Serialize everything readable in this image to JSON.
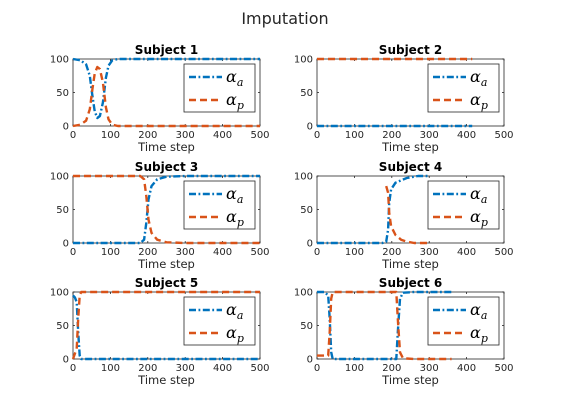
{
  "figure": {
    "title": "Imputation"
  },
  "chart_data": [
    {
      "type": "line",
      "title": "Subject 1",
      "xlabel": "Time step",
      "ylabel": "",
      "xlim": [
        0,
        500
      ],
      "ylim": [
        0,
        100
      ],
      "xticks": [
        0,
        100,
        200,
        300,
        400,
        500
      ],
      "yticks": [
        0,
        50,
        100
      ],
      "legend": {
        "placement": "right",
        "entries": [
          "α_a",
          "α_p"
        ]
      },
      "series": [
        {
          "name": "α_a",
          "color": "#0072BD",
          "style": "dash-dot",
          "points": [
            [
              0,
              100
            ],
            [
              20,
              98
            ],
            [
              35,
              92
            ],
            [
              45,
              75
            ],
            [
              52,
              45
            ],
            [
              58,
              22
            ],
            [
              65,
              12
            ],
            [
              72,
              15
            ],
            [
              80,
              35
            ],
            [
              88,
              72
            ],
            [
              95,
              90
            ],
            [
              105,
              98
            ],
            [
              120,
              100
            ],
            [
              500,
              100
            ]
          ]
        },
        {
          "name": "α_p",
          "color": "#D95319",
          "style": "dashed",
          "points": [
            [
              0,
              0
            ],
            [
              20,
              2
            ],
            [
              35,
              8
            ],
            [
              45,
              25
            ],
            [
              52,
              55
            ],
            [
              58,
              78
            ],
            [
              65,
              88
            ],
            [
              72,
              85
            ],
            [
              80,
              65
            ],
            [
              88,
              28
            ],
            [
              95,
              10
            ],
            [
              105,
              2
            ],
            [
              120,
              0
            ],
            [
              500,
              0
            ]
          ]
        }
      ]
    },
    {
      "type": "line",
      "title": "Subject 2",
      "xlabel": "Time step",
      "ylabel": "",
      "xlim": [
        0,
        500
      ],
      "ylim": [
        0,
        100
      ],
      "xticks": [
        0,
        100,
        200,
        300,
        400,
        500
      ],
      "yticks": [
        0,
        50,
        100
      ],
      "legend": {
        "placement": "right",
        "entries": [
          "α_a",
          "α_p"
        ]
      },
      "series": [
        {
          "name": "α_a",
          "color": "#0072BD",
          "style": "dash-dot",
          "points": [
            [
              0,
              0
            ],
            [
              415,
              0
            ]
          ]
        },
        {
          "name": "α_p",
          "color": "#D95319",
          "style": "dashed",
          "points": [
            [
              0,
              100
            ],
            [
              415,
              100
            ]
          ]
        }
      ]
    },
    {
      "type": "line",
      "title": "Subject 3",
      "xlabel": "Time step",
      "ylabel": "",
      "xlim": [
        0,
        500
      ],
      "ylim": [
        0,
        100
      ],
      "xticks": [
        0,
        100,
        200,
        300,
        400,
        500
      ],
      "yticks": [
        0,
        50,
        100
      ],
      "legend": {
        "placement": "right",
        "entries": [
          "α_a",
          "α_p"
        ]
      },
      "series": [
        {
          "name": "α_a",
          "color": "#0072BD",
          "style": "dash-dot",
          "points": [
            [
              0,
              0
            ],
            [
              180,
              0
            ],
            [
              190,
              5
            ],
            [
              196,
              30
            ],
            [
              202,
              65
            ],
            [
              210,
              85
            ],
            [
              225,
              95
            ],
            [
              250,
              99
            ],
            [
              300,
              100
            ],
            [
              500,
              100
            ]
          ]
        },
        {
          "name": "α_p",
          "color": "#D95319",
          "style": "dashed",
          "points": [
            [
              0,
              100
            ],
            [
              180,
              100
            ],
            [
              190,
              95
            ],
            [
              196,
              70
            ],
            [
              202,
              35
            ],
            [
              210,
              15
            ],
            [
              225,
              5
            ],
            [
              250,
              1
            ],
            [
              300,
              0
            ],
            [
              500,
              0
            ]
          ]
        }
      ]
    },
    {
      "type": "line",
      "title": "Subject 4",
      "xlabel": "Time step",
      "ylabel": "",
      "xlim": [
        0,
        500
      ],
      "ylim": [
        0,
        100
      ],
      "xticks": [
        0,
        100,
        200,
        300,
        400,
        500
      ],
      "yticks": [
        0,
        50,
        100
      ],
      "legend": {
        "placement": "right",
        "entries": [
          "α_a",
          "α_p"
        ]
      },
      "series": [
        {
          "name": "α_a",
          "color": "#0072BD",
          "style": "dash-dot",
          "points": [
            [
              0,
              0
            ],
            [
              175,
              0
            ],
            [
              185,
              2
            ],
            [
              190,
              20
            ],
            [
              193,
              60
            ],
            [
              198,
              80
            ],
            [
              210,
              90
            ],
            [
              240,
              97
            ],
            [
              270,
              100
            ],
            [
              300,
              100
            ]
          ]
        },
        {
          "name": "α_p",
          "color": "#D95319",
          "style": "dashed",
          "points": [
            [
              185,
              85
            ],
            [
              190,
              75
            ],
            [
              193,
              45
            ],
            [
              198,
              25
            ],
            [
              210,
              12
            ],
            [
              225,
              5
            ],
            [
              240,
              2
            ],
            [
              260,
              0
            ],
            [
              300,
              0
            ]
          ]
        }
      ]
    },
    {
      "type": "line",
      "title": "Subject 5",
      "xlabel": "Time step",
      "ylabel": "",
      "xlim": [
        0,
        500
      ],
      "ylim": [
        0,
        100
      ],
      "xticks": [
        0,
        100,
        200,
        300,
        400,
        500
      ],
      "yticks": [
        0,
        50,
        100
      ],
      "legend": {
        "placement": "right",
        "entries": [
          "α_a",
          "α_p"
        ]
      },
      "series": [
        {
          "name": "α_a",
          "color": "#0072BD",
          "style": "dash-dot",
          "points": [
            [
              0,
              95
            ],
            [
              5,
              92
            ],
            [
              10,
              85
            ],
            [
              14,
              40
            ],
            [
              18,
              5
            ],
            [
              22,
              0
            ],
            [
              500,
              0
            ]
          ]
        },
        {
          "name": "α_p",
          "color": "#D95319",
          "style": "dashed",
          "points": [
            [
              0,
              0
            ],
            [
              5,
              8
            ],
            [
              10,
              15
            ],
            [
              14,
              60
            ],
            [
              18,
              95
            ],
            [
              22,
              100
            ],
            [
              500,
              100
            ]
          ]
        }
      ]
    },
    {
      "type": "line",
      "title": "Subject 6",
      "xlabel": "Time step",
      "ylabel": "",
      "xlim": [
        0,
        500
      ],
      "ylim": [
        0,
        100
      ],
      "xticks": [
        0,
        100,
        200,
        300,
        400,
        500
      ],
      "yticks": [
        0,
        50,
        100
      ],
      "legend": {
        "placement": "right",
        "entries": [
          "α_a",
          "α_p"
        ]
      },
      "series": [
        {
          "name": "α_a",
          "color": "#0072BD",
          "style": "dash-dot",
          "points": [
            [
              0,
              100
            ],
            [
              20,
              100
            ],
            [
              30,
              95
            ],
            [
              34,
              60
            ],
            [
              38,
              10
            ],
            [
              42,
              0
            ],
            [
              212,
              0
            ],
            [
              216,
              40
            ],
            [
              222,
              90
            ],
            [
              230,
              99
            ],
            [
              260,
              100
            ],
            [
              360,
              100
            ]
          ]
        },
        {
          "name": "α_p",
          "color": "#D95319",
          "style": "dashed",
          "points": [
            [
              0,
              5
            ],
            [
              20,
              5
            ],
            [
              30,
              5
            ],
            [
              34,
              40
            ],
            [
              38,
              90
            ],
            [
              42,
              100
            ],
            [
              212,
              100
            ],
            [
              216,
              60
            ],
            [
              222,
              10
            ],
            [
              230,
              1
            ],
            [
              260,
              0
            ],
            [
              360,
              0
            ]
          ]
        }
      ]
    }
  ]
}
